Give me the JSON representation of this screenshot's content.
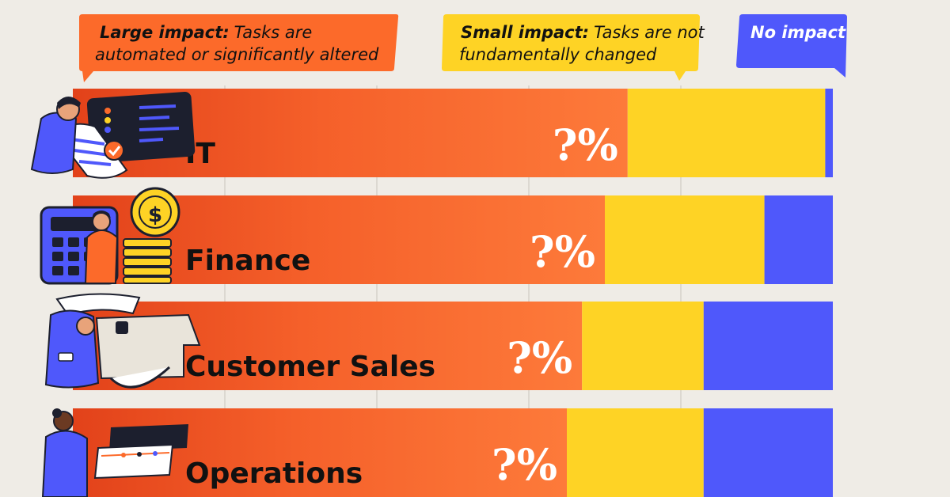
{
  "chart_data": {
    "type": "bar",
    "orientation": "horizontal",
    "stacked": true,
    "categories": [
      "IT",
      "Finance",
      "Customer Sales",
      "Operations"
    ],
    "series": [
      {
        "name": "Large impact",
        "values": [
          73,
          70,
          67,
          65
        ],
        "data_label": "?%"
      },
      {
        "name": "Small impact",
        "values": [
          26,
          21,
          16,
          18
        ]
      },
      {
        "name": "No impact",
        "values": [
          1,
          9,
          17,
          17
        ]
      }
    ],
    "xlim": [
      0,
      100
    ],
    "grid": true,
    "legend": [
      {
        "key": "Large impact:",
        "text": "Tasks are",
        "text2": "automated or significantly altered"
      },
      {
        "key": "Small impact:",
        "text": "Tasks are not",
        "text2": "fundamentally changed"
      },
      {
        "key": "No impact",
        "text": "",
        "text2": ""
      }
    ],
    "legend_placement": "top",
    "colors": {
      "large": "#fc6a2a",
      "large_dark": "#e84a1e",
      "small": "#fed325",
      "none": "#4f58fb",
      "label": "#111111",
      "pct": "#ffffff"
    }
  }
}
